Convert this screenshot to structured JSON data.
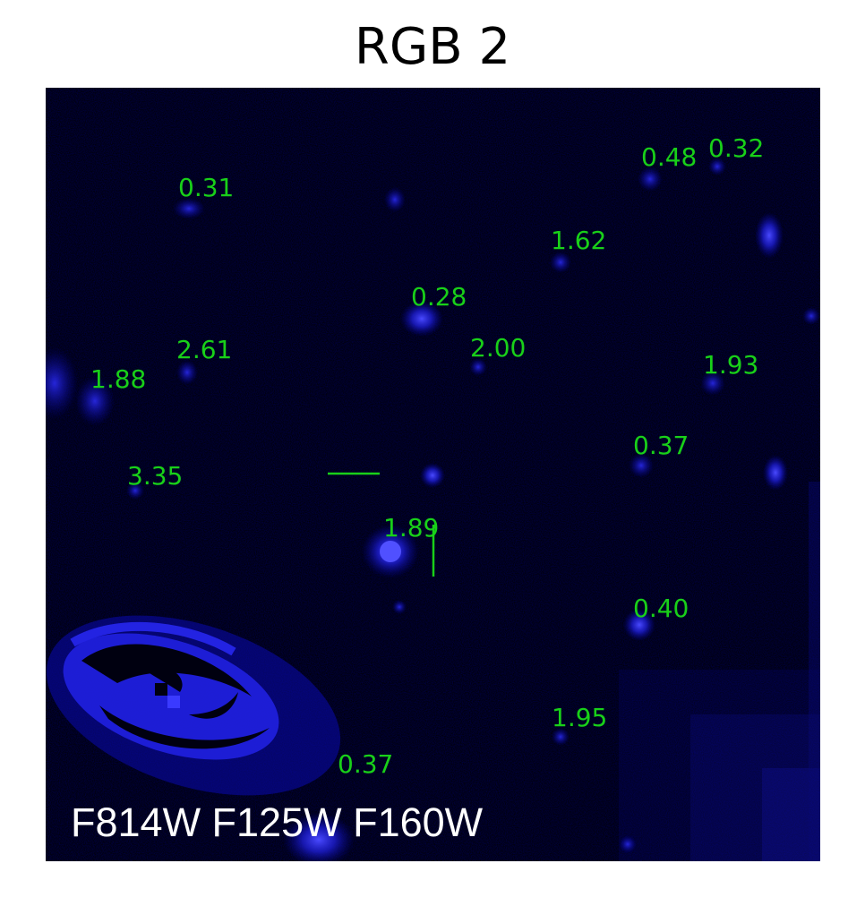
{
  "figure": {
    "title": "RGB 2",
    "filters_label": "F814W F125W F160W",
    "label_color": "#19d019",
    "background_color": "#000008",
    "source_color": "#2a2aff",
    "redshift_labels": [
      {
        "id": "z-031a",
        "text": "0.31"
      },
      {
        "id": "z-048",
        "text": "0.48"
      },
      {
        "id": "z-032",
        "text": "0.32"
      },
      {
        "id": "z-162",
        "text": "1.62"
      },
      {
        "id": "z-028",
        "text": "0.28"
      },
      {
        "id": "z-261",
        "text": "2.61"
      },
      {
        "id": "z-200",
        "text": "2.00"
      },
      {
        "id": "z-188",
        "text": "1.88"
      },
      {
        "id": "z-193",
        "text": "1.93"
      },
      {
        "id": "z-037a",
        "text": "0.37"
      },
      {
        "id": "z-335",
        "text": "3.35"
      },
      {
        "id": "z-189",
        "text": "1.89"
      },
      {
        "id": "z-040",
        "text": "0.40"
      },
      {
        "id": "z-195",
        "text": "1.95"
      },
      {
        "id": "z-037b",
        "text": "0.37"
      }
    ]
  }
}
